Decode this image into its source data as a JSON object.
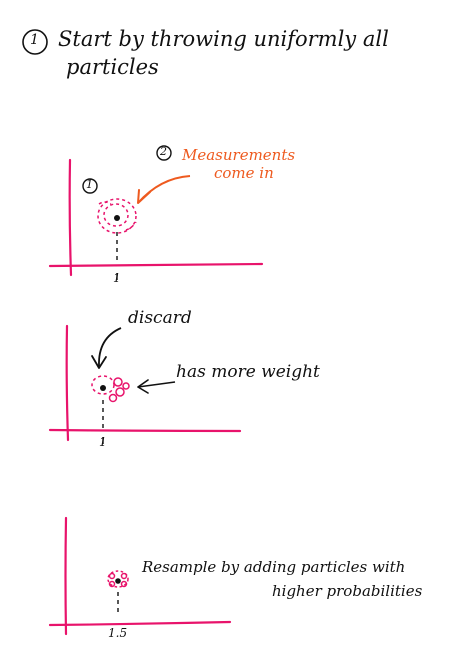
{
  "heading": {
    "number": "1",
    "line1": "Start by throwing uniformly all",
    "line2": "particles"
  },
  "panel1": {
    "step2_number": "2",
    "step1_number": "1",
    "annotation_line1": "Measurements",
    "annotation_line2": "come in",
    "tick_label": "1"
  },
  "panel2": {
    "discard_label": "discard",
    "weight_label": "has more weight",
    "tick_label": "1"
  },
  "panel3": {
    "resample_line1": "Resample by adding particles with",
    "resample_line2": "higher probabilities",
    "tick_label": "1.5"
  },
  "colors": {
    "axis": "#e8136b",
    "particles": "#e8136b",
    "annotation": "#ee5a1f",
    "ink": "#111111"
  }
}
